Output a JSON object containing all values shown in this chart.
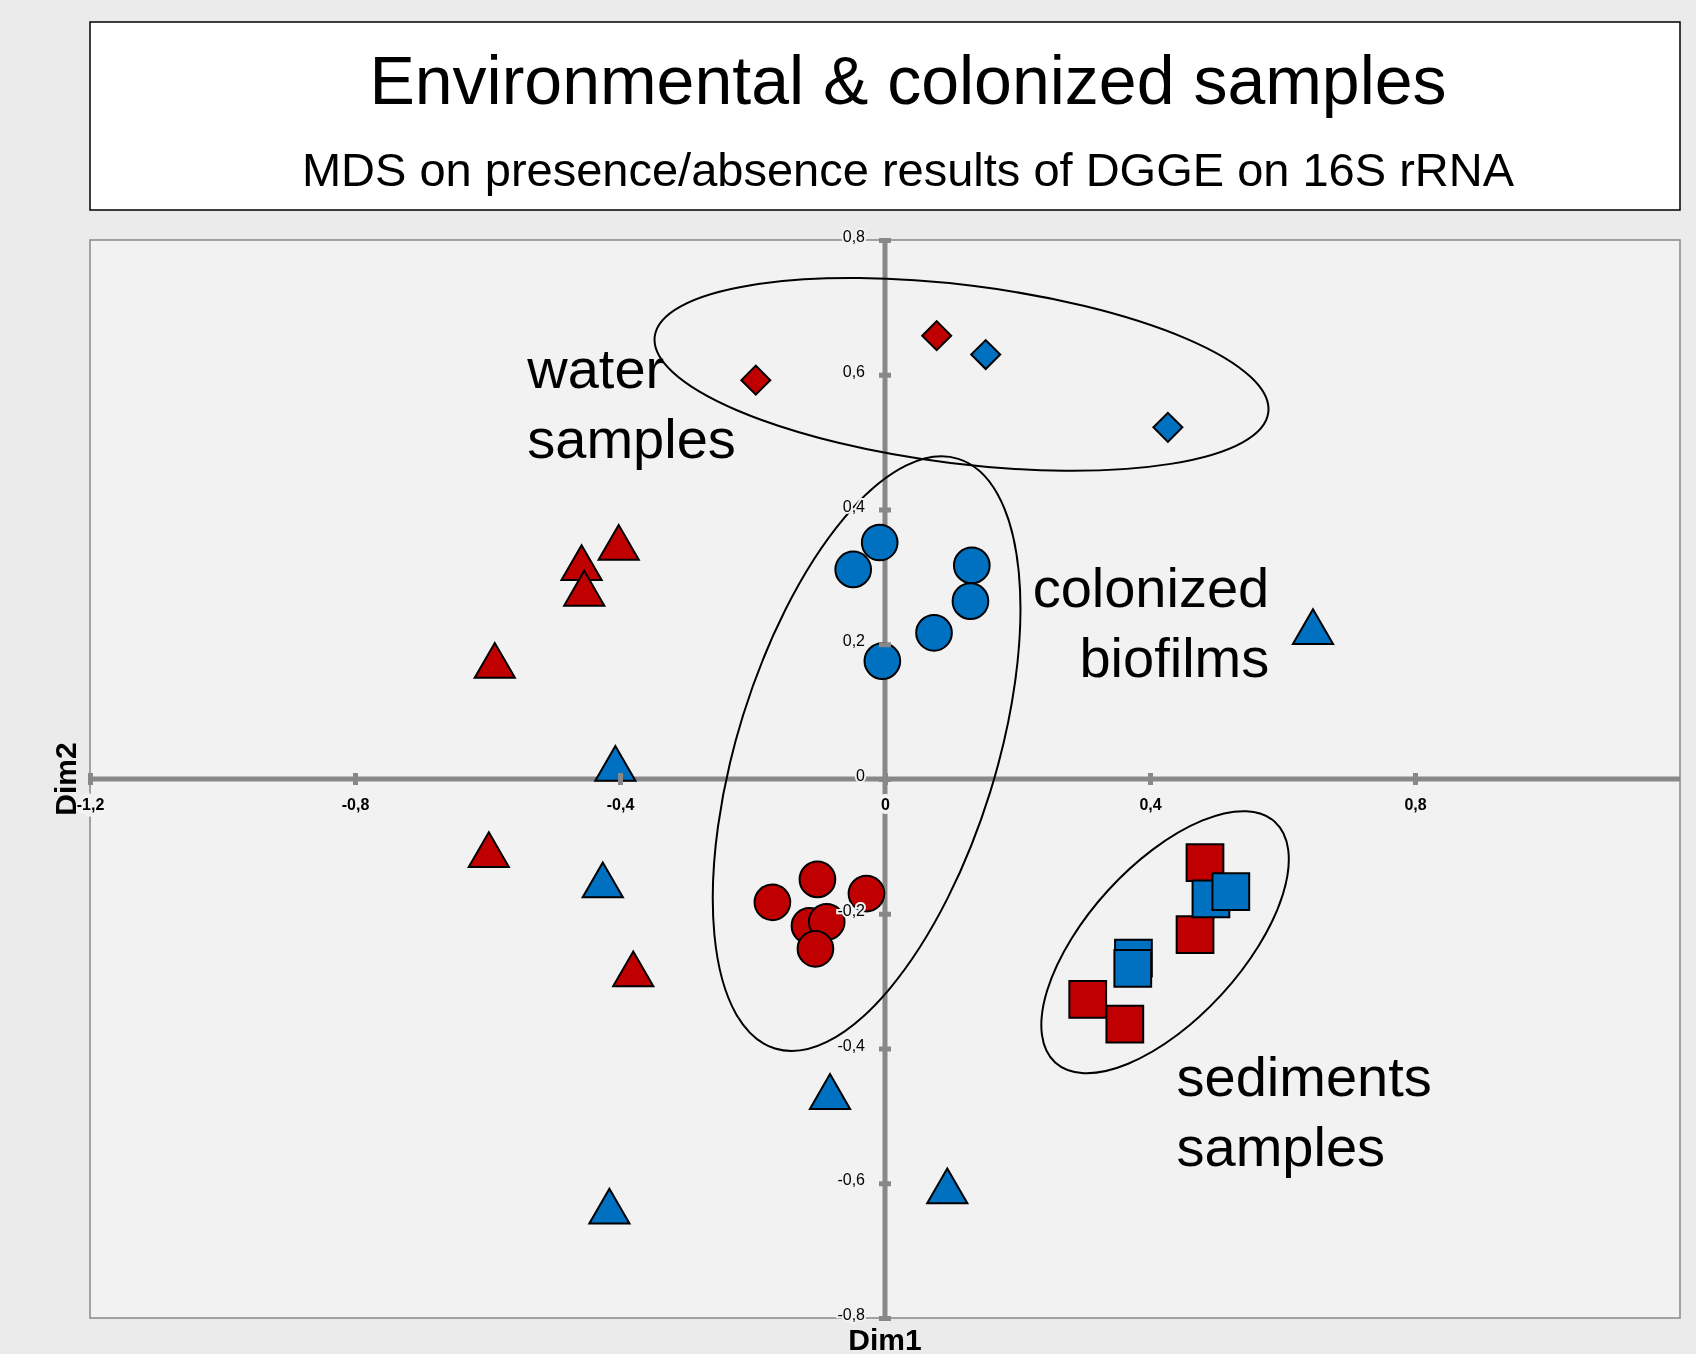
{
  "chart_data": {
    "type": "scatter",
    "title": "Environmental & colonized samples",
    "subtitle": "MDS on presence/absence results of DGGE on 16S rRNA",
    "xlabel": "Dim1",
    "ylabel": "Dim2",
    "xlim": [
      -1.2,
      1.2
    ],
    "ylim": [
      -0.8,
      0.8
    ],
    "xticks": [
      {
        "value": -1.2,
        "label": "-1,2"
      },
      {
        "value": -0.8,
        "label": "-0,8"
      },
      {
        "value": -0.4,
        "label": "-0,4"
      },
      {
        "value": 0,
        "label": "0"
      },
      {
        "value": 0.4,
        "label": "0,4"
      },
      {
        "value": 0.8,
        "label": "0,8"
      }
    ],
    "yticks": [
      {
        "value": -0.8,
        "label": "-0,8"
      },
      {
        "value": -0.6,
        "label": "-0,6"
      },
      {
        "value": -0.4,
        "label": "-0,4"
      },
      {
        "value": -0.2,
        "label": "-0,2"
      },
      {
        "value": 0,
        "label": "0"
      },
      {
        "value": 0.2,
        "label": "0,2"
      },
      {
        "value": 0.4,
        "label": "0,4"
      },
      {
        "value": 0.6,
        "label": "0,6"
      },
      {
        "value": 0.8,
        "label": "0,8"
      }
    ],
    "grid": false,
    "annotations": [
      "water samples",
      "colonized biofilms",
      "sediments samples"
    ],
    "series": [
      {
        "color": "#c00000",
        "marker": "diamond",
        "x": [
          -0.195,
          0.078
        ],
        "values": [
          0.592,
          0.658
        ]
      },
      {
        "color": "#0070c0",
        "marker": "diamond",
        "x": [
          0.152,
          0.427
        ],
        "values": [
          0.63,
          0.522
        ]
      },
      {
        "color": "#0070c0",
        "marker": "circle",
        "x": [
          -0.008,
          -0.048,
          0.131,
          0.129,
          0.074,
          -0.004
        ],
        "values": [
          0.351,
          0.311,
          0.317,
          0.264,
          0.217,
          0.175
        ]
      },
      {
        "color": "#c00000",
        "marker": "circle",
        "x": [
          -0.17,
          -0.102,
          -0.028,
          -0.114,
          -0.088,
          -0.105
        ],
        "values": [
          -0.183,
          -0.149,
          -0.17,
          -0.218,
          -0.212,
          -0.252
        ]
      },
      {
        "color": "#c00000",
        "marker": "square",
        "x": [
          0.483,
          0.468,
          0.306,
          0.362
        ],
        "values": [
          -0.124,
          -0.231,
          -0.327,
          -0.364
        ]
      },
      {
        "color": "#0070c0",
        "marker": "square",
        "x": [
          0.375,
          0.374,
          0.492,
          0.522
        ],
        "values": [
          -0.266,
          -0.281,
          -0.178,
          -0.167
        ]
      },
      {
        "color": "#c00000",
        "marker": "triangle",
        "x": [
          -0.402,
          -0.458,
          -0.454,
          -0.589,
          -0.598,
          -0.38
        ],
        "values": [
          0.347,
          0.317,
          0.279,
          0.172,
          -0.109,
          -0.286
        ]
      },
      {
        "color": "#0070c0",
        "marker": "triangle",
        "x": [
          -0.407,
          -0.426,
          -0.083,
          -0.416,
          0.094,
          0.646
        ],
        "values": [
          0.019,
          -0.154,
          -0.468,
          -0.638,
          -0.608,
          0.222
        ]
      }
    ]
  }
}
